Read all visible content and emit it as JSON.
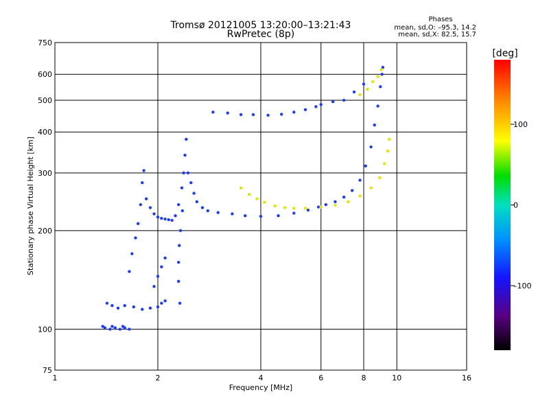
{
  "chart_data": {
    "type": "scatter",
    "title": "Tromsø 20121005 13:20:00–13:21:43",
    "subtitle": "RwPretec (8p)",
    "phase_stats": {
      "heading": "Phases",
      "line_o": "mean, sd,O: –95.3, 14.2",
      "line_x": "mean, sd,X:  82.5, 15.7"
    },
    "xlabel": "Frequency [MHz]",
    "ylabel": "Stationary phase Virtual Height [km]",
    "x_scale": "log",
    "y_scale": "log",
    "xlim": [
      1,
      16
    ],
    "ylim": [
      75,
      750
    ],
    "x_ticks": [
      1,
      2,
      4,
      6,
      8,
      10,
      16
    ],
    "x_tick_labels": [
      "1",
      "2",
      "4",
      "6",
      "8",
      "10",
      "16"
    ],
    "y_ticks": [
      75,
      100,
      200,
      300,
      400,
      500,
      600,
      750
    ],
    "y_tick_labels": [
      "75",
      "100",
      "200",
      "300",
      "400",
      "500",
      "600",
      "750"
    ],
    "gridlines_x": [
      2,
      4,
      6,
      8,
      10
    ],
    "gridlines_y": [
      100,
      200,
      300,
      400,
      500,
      600
    ],
    "grid": true,
    "colorbar": {
      "label": "[deg]",
      "range": [
        -180,
        180
      ],
      "ticks": [
        100,
        0,
        -100
      ],
      "tick_labels": [
        "100",
        "0",
        "–100"
      ]
    },
    "series": [
      {
        "color_phase": -95,
        "points": [
          [
            1.4,
            101
          ],
          [
            1.45,
            100
          ],
          [
            1.5,
            101
          ],
          [
            1.55,
            100
          ],
          [
            1.6,
            101
          ],
          [
            1.65,
            100
          ],
          [
            1.38,
            102
          ],
          [
            1.47,
            102
          ],
          [
            1.58,
            102
          ],
          [
            1.42,
            120
          ],
          [
            1.47,
            118
          ],
          [
            1.53,
            116
          ],
          [
            1.6,
            118
          ],
          [
            1.65,
            150
          ],
          [
            1.68,
            170
          ],
          [
            1.72,
            190
          ],
          [
            1.75,
            210
          ],
          [
            1.78,
            240
          ],
          [
            1.8,
            280
          ],
          [
            1.82,
            305
          ],
          [
            1.7,
            117
          ],
          [
            1.8,
            115
          ],
          [
            1.9,
            116
          ],
          [
            2.0,
            117
          ],
          [
            2.05,
            120
          ],
          [
            2.1,
            122
          ],
          [
            1.95,
            135
          ],
          [
            2.0,
            145
          ],
          [
            2.05,
            155
          ],
          [
            2.1,
            165
          ],
          [
            1.85,
            250
          ],
          [
            1.9,
            235
          ],
          [
            1.95,
            225
          ],
          [
            2.0,
            220
          ],
          [
            2.05,
            218
          ],
          [
            2.1,
            217
          ],
          [
            2.15,
            216
          ],
          [
            2.2,
            215
          ],
          [
            2.25,
            222
          ],
          [
            2.3,
            240
          ],
          [
            2.35,
            270
          ],
          [
            2.38,
            300
          ],
          [
            2.4,
            340
          ],
          [
            2.42,
            380
          ],
          [
            2.36,
            230
          ],
          [
            2.33,
            200
          ],
          [
            2.31,
            180
          ],
          [
            2.3,
            160
          ],
          [
            2.3,
            140
          ],
          [
            2.32,
            120
          ],
          [
            2.45,
            300
          ],
          [
            2.5,
            280
          ],
          [
            2.55,
            260
          ],
          [
            2.6,
            245
          ],
          [
            2.7,
            235
          ],
          [
            2.8,
            230
          ],
          [
            3.0,
            227
          ],
          [
            3.3,
            225
          ],
          [
            3.6,
            222
          ],
          [
            4.0,
            221
          ],
          [
            4.5,
            222
          ],
          [
            5.0,
            226
          ],
          [
            5.5,
            231
          ],
          [
            5.9,
            236
          ],
          [
            6.2,
            240
          ],
          [
            6.6,
            245
          ],
          [
            7.0,
            253
          ],
          [
            7.4,
            265
          ],
          [
            7.8,
            285
          ],
          [
            8.1,
            315
          ],
          [
            8.4,
            360
          ],
          [
            8.6,
            420
          ],
          [
            8.8,
            480
          ],
          [
            8.95,
            550
          ],
          [
            9.05,
            600
          ],
          [
            9.1,
            630
          ],
          [
            2.9,
            460
          ],
          [
            3.2,
            457
          ],
          [
            3.5,
            452
          ],
          [
            3.8,
            452
          ],
          [
            4.2,
            450
          ],
          [
            4.6,
            453
          ],
          [
            5.0,
            460
          ],
          [
            5.4,
            468
          ],
          [
            5.8,
            478
          ],
          [
            6.0,
            485
          ],
          [
            6.5,
            495
          ],
          [
            7.0,
            500
          ],
          [
            7.5,
            530
          ],
          [
            8.0,
            560
          ]
        ]
      },
      {
        "color_phase": 82,
        "points": [
          [
            3.5,
            270
          ],
          [
            3.7,
            258
          ],
          [
            3.9,
            250
          ],
          [
            4.1,
            244
          ],
          [
            4.4,
            238
          ],
          [
            4.7,
            235
          ],
          [
            5.0,
            234
          ],
          [
            5.4,
            234
          ],
          [
            6.0,
            236
          ],
          [
            6.6,
            239
          ],
          [
            7.2,
            245
          ],
          [
            7.8,
            255
          ],
          [
            8.4,
            270
          ],
          [
            8.9,
            290
          ],
          [
            9.2,
            320
          ],
          [
            9.4,
            350
          ],
          [
            9.5,
            380
          ],
          [
            7.8,
            520
          ],
          [
            8.2,
            540
          ],
          [
            8.5,
            570
          ],
          [
            8.8,
            590
          ],
          [
            9.0,
            620
          ]
        ]
      }
    ]
  }
}
